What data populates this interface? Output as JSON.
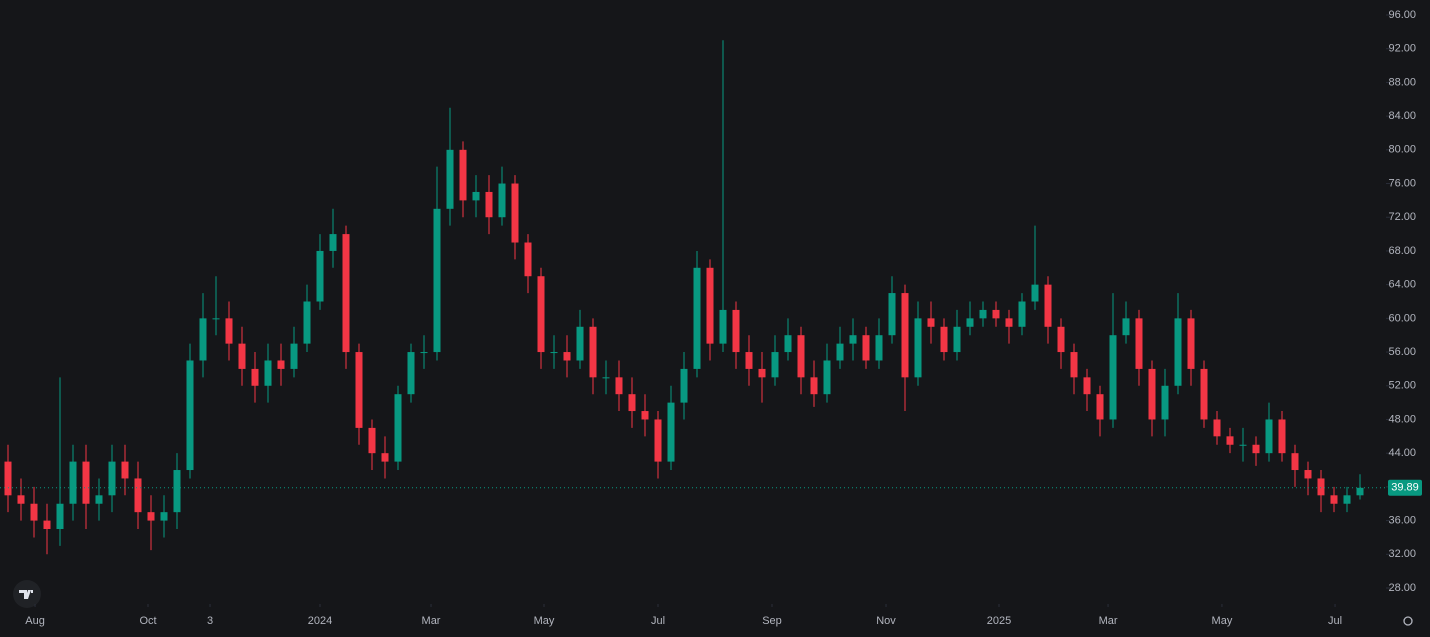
{
  "chart_data": {
    "type": "candlestick",
    "candles": {
      "open": [
        43,
        39,
        38,
        36,
        35,
        38,
        43,
        38,
        39,
        43,
        41,
        37,
        36,
        37,
        42,
        55,
        60,
        60,
        57,
        54,
        52,
        55,
        54,
        57,
        62,
        68,
        70,
        56,
        47,
        44,
        43,
        51,
        56,
        56,
        73,
        80,
        74,
        75,
        72,
        76,
        69,
        65,
        56,
        56,
        55,
        59,
        53,
        53,
        51,
        49,
        48,
        43,
        50,
        54,
        66,
        57,
        61,
        56,
        54,
        53,
        56,
        58,
        53,
        51,
        55,
        57,
        58,
        55,
        58,
        63,
        53,
        60,
        59,
        56,
        59,
        60,
        61,
        60,
        59,
        62,
        64,
        59,
        56,
        53,
        51,
        48,
        58,
        60,
        54,
        48,
        52,
        60,
        54,
        48,
        46,
        45,
        45,
        44,
        48,
        44,
        42,
        41,
        39,
        38,
        39
      ],
      "high": [
        45,
        41,
        40,
        38,
        53,
        45,
        45,
        41,
        45,
        45,
        43,
        39,
        39,
        44,
        57,
        63,
        65,
        62,
        59,
        56,
        57,
        57,
        59,
        64,
        70,
        73,
        71,
        57,
        48,
        46,
        52,
        57,
        58,
        78,
        85,
        81,
        77,
        77,
        78,
        77,
        70,
        66,
        58,
        58,
        61,
        60,
        55,
        55,
        53,
        51,
        49,
        52,
        56,
        68,
        67,
        93,
        62,
        58,
        56,
        58,
        60,
        59,
        55,
        57,
        59,
        60,
        59,
        60,
        65,
        64,
        62,
        62,
        60,
        61,
        62,
        62,
        62,
        61,
        63,
        71,
        65,
        60,
        57,
        54,
        52,
        63,
        62,
        61,
        55,
        54,
        63,
        61,
        55,
        49,
        47,
        47,
        46,
        50,
        49,
        45,
        43,
        42,
        40,
        40,
        41.5
      ],
      "low": [
        37,
        36,
        34,
        32,
        33,
        36,
        35,
        36,
        37,
        39,
        35,
        32.5,
        34,
        35,
        41,
        53,
        58,
        55,
        52,
        50,
        50,
        52,
        53,
        56,
        61,
        66,
        54,
        45,
        42,
        41,
        42,
        50,
        54,
        55,
        71,
        72,
        72,
        70,
        71,
        67,
        63,
        54,
        54,
        53,
        54,
        51,
        51,
        49,
        47,
        46,
        41,
        42,
        48,
        53,
        55,
        56,
        54,
        52,
        50,
        52,
        55,
        51,
        49.5,
        50,
        54,
        55,
        54,
        54,
        57,
        49,
        52,
        57,
        55,
        55,
        58,
        59,
        59,
        57,
        58,
        61,
        57,
        54,
        51,
        49,
        46,
        47,
        57,
        52,
        46,
        46,
        51,
        52,
        47,
        45,
        44,
        43,
        42.5,
        43,
        43,
        40,
        39,
        37,
        37,
        37,
        38.5
      ],
      "close": [
        39,
        38,
        36,
        35,
        38,
        43,
        38,
        39,
        43,
        41,
        37,
        36,
        37,
        42,
        55,
        60,
        60,
        57,
        54,
        52,
        55,
        54,
        57,
        62,
        68,
        70,
        56,
        47,
        44,
        43,
        51,
        56,
        56,
        73,
        80,
        74,
        75,
        72,
        76,
        69,
        65,
        56,
        56,
        55,
        59,
        53,
        53,
        51,
        49,
        48,
        43,
        50,
        54,
        66,
        57,
        61,
        56,
        54,
        53,
        56,
        58,
        53,
        51,
        55,
        57,
        58,
        55,
        58,
        63,
        53,
        60,
        59,
        56,
        59,
        60,
        61,
        60,
        59,
        62,
        64,
        59,
        56,
        53,
        51,
        48,
        58,
        60,
        54,
        48,
        52,
        60,
        54,
        48,
        46,
        45,
        45,
        44,
        48,
        44,
        42,
        41,
        39,
        38,
        39,
        39.89
      ]
    },
    "up_color": "#089981",
    "down_color": "#f23645",
    "ylim": [
      28,
      96
    ],
    "yticks": [
      {
        "value": 28,
        "label": "28.00"
      },
      {
        "value": 32,
        "label": "32.00"
      },
      {
        "value": 36,
        "label": "36.00"
      },
      {
        "value": 40,
        "label": "40.00"
      },
      {
        "value": 44,
        "label": "44.00"
      },
      {
        "value": 48,
        "label": "48.00"
      },
      {
        "value": 52,
        "label": "52.00"
      },
      {
        "value": 56,
        "label": "56.00"
      },
      {
        "value": 60,
        "label": "60.00"
      },
      {
        "value": 64,
        "label": "64.00"
      },
      {
        "value": 68,
        "label": "68.00"
      },
      {
        "value": 72,
        "label": "72.00"
      },
      {
        "value": 76,
        "label": "76.00"
      },
      {
        "value": 80,
        "label": "80.00"
      },
      {
        "value": 84,
        "label": "84.00"
      },
      {
        "value": 88,
        "label": "88.00"
      },
      {
        "value": 92,
        "label": "92.00"
      },
      {
        "value": 96,
        "label": "96.00"
      }
    ],
    "xticks": [
      {
        "value": 2.08,
        "label": "Aug"
      },
      {
        "value": 10.77,
        "label": "Oct"
      },
      {
        "value": 15.54,
        "label": "3"
      },
      {
        "value": 24,
        "label": "2024"
      },
      {
        "value": 32.54,
        "label": "Mar"
      },
      {
        "value": 41.23,
        "label": "May"
      },
      {
        "value": 50,
        "label": "Jul"
      },
      {
        "value": 58.77,
        "label": "Sep"
      },
      {
        "value": 67.54,
        "label": "Nov"
      },
      {
        "value": 76.23,
        "label": "2025"
      },
      {
        "value": 84.62,
        "label": "Mar"
      },
      {
        "value": 93.38,
        "label": "May"
      },
      {
        "value": 102.08,
        "label": "Jul"
      }
    ],
    "last_price": {
      "value": 39.89,
      "label": "39.89"
    },
    "grid": false
  }
}
